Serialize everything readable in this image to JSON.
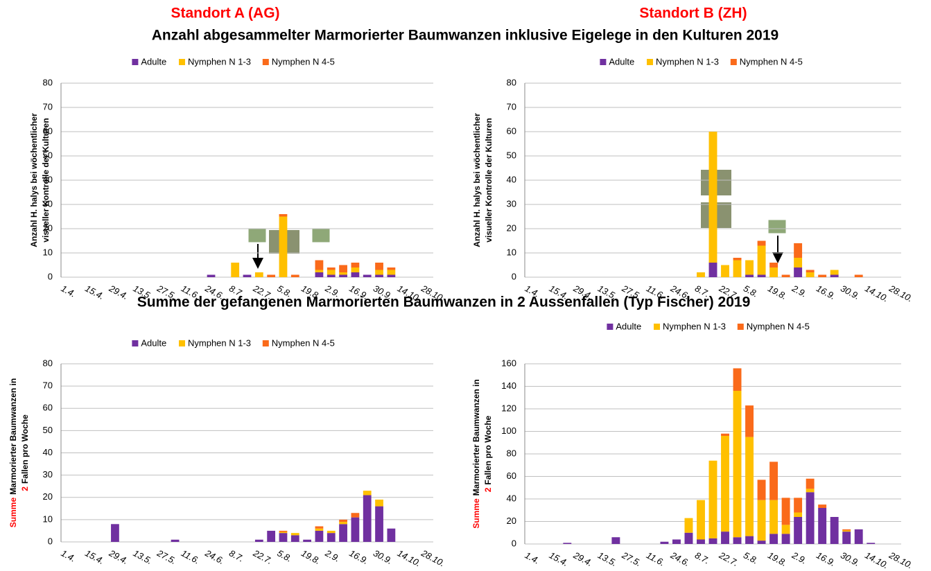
{
  "headings": {
    "site_a": "Standort A (AG)",
    "site_b": "Standort B (ZH)",
    "title_top": "Anzahl abgesammelter Marmorierter Baumwanzen inklusive Eigelege in den Kulturen 2019",
    "title_bottom": "Summe der gefangenen Marmorierten Baumwanzen in 2 Aussenfallen (Typ Fischer) 2019"
  },
  "chart_data": [
    {
      "type": "bar",
      "stacked": true,
      "grid": true,
      "ylabel": [
        [
          {
            "text": "Anzahl H. halys bei wöchentlicher"
          }
        ],
        [
          {
            "text": "visueller Kontrolle der Kulturen"
          }
        ]
      ],
      "categories": [
        "1.4.",
        null,
        "15.4.",
        null,
        "29.4.",
        null,
        "13.5.",
        null,
        "27.5.",
        null,
        "11.6.",
        null,
        "24.6.",
        null,
        "8.7.",
        null,
        "22.7.",
        null,
        "5.8.",
        null,
        "19.8.",
        null,
        "2.9.",
        null,
        "16.9.",
        null,
        "30.9.",
        null,
        "14.10.",
        null,
        "28.10."
      ],
      "series": [
        {
          "name": "Adulte",
          "color": "#7030a0",
          "values": [
            0,
            0,
            0,
            0,
            0,
            0,
            0,
            0,
            0,
            0,
            0,
            0,
            1,
            0,
            0,
            1,
            0,
            0,
            0,
            0,
            0,
            2,
            1,
            1,
            2,
            1,
            1,
            1,
            0,
            0,
            0
          ]
        },
        {
          "name": "Nymphen N 1-3",
          "color": "#ffc000",
          "values": [
            0,
            0,
            0,
            0,
            0,
            0,
            0,
            0,
            0,
            0,
            0,
            0,
            0,
            0,
            6,
            0,
            2,
            0,
            25,
            0,
            0,
            1,
            2,
            1,
            2,
            0,
            2,
            2,
            0,
            0,
            0
          ]
        },
        {
          "name": "Nymphen N 4-5",
          "color": "#fa6a1a",
          "values": [
            0,
            0,
            0,
            0,
            0,
            0,
            0,
            0,
            0,
            0,
            0,
            0,
            0,
            0,
            0,
            0,
            0,
            1,
            1,
            1,
            0,
            4,
            1,
            3,
            2,
            0,
            3,
            1,
            0,
            0,
            0
          ]
        }
      ],
      "ylim": [
        0,
        80
      ],
      "yticks": [
        0,
        10,
        20,
        30,
        40,
        50,
        60,
        70,
        80
      ]
    },
    {
      "type": "bar",
      "stacked": true,
      "grid": true,
      "ylabel": [
        [
          {
            "text": "Anzahl H. halys bei wöchentlicher"
          }
        ],
        [
          {
            "text": "visueller Kontrolle der Kulturen"
          }
        ]
      ],
      "categories": [
        "1.4.",
        null,
        "15.4.",
        null,
        "29.4.",
        null,
        "13.5.",
        null,
        "27.5.",
        null,
        "11.6.",
        null,
        "24.6.",
        null,
        "8.7.",
        null,
        "22.7.",
        null,
        "5.8.",
        null,
        "19.8.",
        null,
        "2.9.",
        null,
        "16.9.",
        null,
        "30.9.",
        null,
        "14.10.",
        null,
        "28.10."
      ],
      "series": [
        {
          "name": "Adulte",
          "color": "#7030a0",
          "values": [
            0,
            0,
            0,
            0,
            0,
            0,
            0,
            0,
            0,
            0,
            0,
            0,
            0,
            0,
            0,
            6,
            0,
            0,
            1,
            1,
            0,
            0,
            4,
            0,
            0,
            1,
            0,
            0,
            0,
            0,
            0
          ]
        },
        {
          "name": "Nymphen N 1-3",
          "color": "#ffc000",
          "values": [
            0,
            0,
            0,
            0,
            0,
            0,
            0,
            0,
            0,
            0,
            0,
            0,
            0,
            0,
            2,
            54,
            5,
            7,
            6,
            12,
            4,
            0,
            4,
            2,
            0,
            2,
            0,
            0,
            0,
            0,
            0
          ]
        },
        {
          "name": "Nymphen N 4-5",
          "color": "#fa6a1a",
          "values": [
            0,
            0,
            0,
            0,
            0,
            0,
            0,
            0,
            0,
            0,
            0,
            0,
            0,
            0,
            0,
            0,
            0,
            1,
            0,
            2,
            2,
            1,
            6,
            1,
            1,
            0,
            0,
            1,
            0,
            0,
            0
          ]
        }
      ],
      "ylim": [
        0,
        80
      ],
      "yticks": [
        0,
        10,
        20,
        30,
        40,
        50,
        60,
        70,
        80
      ]
    },
    {
      "type": "bar",
      "stacked": true,
      "grid": true,
      "ylabel": [
        [
          {
            "text": "Summe",
            "color": "#ff0000"
          },
          {
            "text": "Marmorierter Baumwanzen in"
          }
        ],
        [
          {
            "text": "2",
            "color": "#ff0000"
          },
          {
            "text": "Fallen pro Woche"
          }
        ]
      ],
      "categories": [
        "1.4.",
        null,
        "15.4.",
        null,
        "29.4.",
        null,
        "13.5.",
        null,
        "27.5.",
        null,
        "11.6.",
        null,
        "24.6.",
        null,
        "8.7.",
        null,
        "22.7.",
        null,
        "5.8.",
        null,
        "19.8.",
        null,
        "2.9.",
        null,
        "16.9.",
        null,
        "30.9.",
        null,
        "14.10.",
        null,
        "28.10."
      ],
      "series": [
        {
          "name": "Adulte",
          "color": "#7030a0",
          "values": [
            0,
            0,
            0,
            0,
            8,
            0,
            0,
            0,
            0,
            1,
            0,
            0,
            0,
            0,
            0,
            0,
            1,
            5,
            4,
            3,
            1,
            5,
            4,
            8,
            11,
            21,
            16,
            6,
            0,
            0,
            0
          ]
        },
        {
          "name": "Nymphen N 1-3",
          "color": "#ffc000",
          "values": [
            0,
            0,
            0,
            0,
            0,
            0,
            0,
            0,
            0,
            0,
            0,
            0,
            0,
            0,
            0,
            0,
            0,
            0,
            0.5,
            1,
            0,
            1,
            1,
            1,
            0,
            2,
            3,
            0,
            0,
            0,
            0
          ]
        },
        {
          "name": "Nymphen N 4-5",
          "color": "#fa6a1a",
          "values": [
            0,
            0,
            0,
            0,
            0,
            0,
            0,
            0,
            0,
            0,
            0,
            0,
            0,
            0,
            0,
            0,
            0,
            0,
            0.5,
            0,
            0,
            1,
            0,
            1,
            2,
            0,
            0,
            0,
            0,
            0,
            0
          ]
        }
      ],
      "ylim": [
        0,
        80
      ],
      "yticks": [
        0,
        10,
        20,
        30,
        40,
        50,
        60,
        70,
        80
      ]
    },
    {
      "type": "bar",
      "stacked": true,
      "grid": true,
      "ylabel": [
        [
          {
            "text": "Summe",
            "color": "#ff0000"
          },
          {
            "text": "Marmorierter Baumwanzen in"
          }
        ],
        [
          {
            "text": "2",
            "color": "#ff0000"
          },
          {
            "text": "Fallen pro Woche"
          }
        ]
      ],
      "categories": [
        "1.4.",
        null,
        "15.4.",
        null,
        "29.4.",
        null,
        "13.5.",
        null,
        "27.5.",
        null,
        "11.6.",
        null,
        "24.6.",
        null,
        "8.7.",
        null,
        "22.7.",
        null,
        "5.8.",
        null,
        "19.8.",
        null,
        "2.9.",
        null,
        "16.9.",
        null,
        "30.9.",
        null,
        "14.10.",
        null,
        "28.10."
      ],
      "series": [
        {
          "name": "Adulte",
          "color": "#7030a0",
          "values": [
            0,
            0,
            0,
            1,
            0,
            0,
            0,
            6,
            0,
            0,
            0,
            2,
            4,
            10,
            4,
            5,
            11,
            6,
            7,
            3,
            9,
            9,
            24,
            46,
            32,
            24,
            11,
            13,
            1,
            0,
            0
          ]
        },
        {
          "name": "Nymphen N 1-3",
          "color": "#ffc000",
          "values": [
            0,
            0,
            0,
            0,
            0,
            0,
            0,
            0,
            0,
            0,
            0,
            0,
            0,
            13,
            35,
            69,
            85,
            130,
            88,
            36,
            30,
            8,
            4,
            3,
            0,
            0,
            1,
            0,
            0,
            0,
            0
          ]
        },
        {
          "name": "Nymphen N 4-5",
          "color": "#fa6a1a",
          "values": [
            0,
            0,
            0,
            0,
            0,
            0,
            0,
            0,
            0,
            0,
            0,
            0,
            0,
            0,
            0,
            0,
            2,
            20,
            28,
            18,
            34,
            24,
            13,
            9,
            3,
            0,
            1,
            0,
            0,
            0,
            0
          ]
        }
      ],
      "ylim": [
        0,
        160
      ],
      "yticks": [
        0,
        20,
        40,
        60,
        80,
        100,
        120,
        140,
        160
      ]
    }
  ]
}
